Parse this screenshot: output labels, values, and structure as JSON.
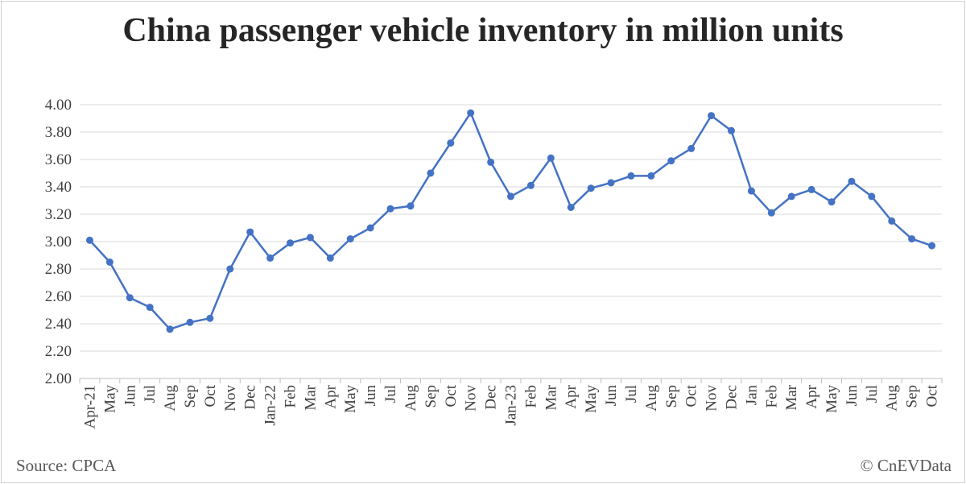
{
  "chart_data": {
    "type": "line",
    "title": "China passenger vehicle inventory in million units",
    "xlabel": "",
    "ylabel": "",
    "ylim": [
      2.0,
      4.0
    ],
    "yticks": [
      "2.00",
      "2.20",
      "2.40",
      "2.60",
      "2.80",
      "3.00",
      "3.20",
      "3.40",
      "3.60",
      "3.80",
      "4.00"
    ],
    "grid": true,
    "legend": "none",
    "color": "#4472C4",
    "categories": [
      "Apr-21",
      "May",
      "Jun",
      "Jul",
      "Aug",
      "Sep",
      "Oct",
      "Nov",
      "Dec",
      "Jan-22",
      "Feb",
      "Mar",
      "Apr",
      "May",
      "Jun",
      "Jul",
      "Aug",
      "Sep",
      "Oct",
      "Nov",
      "Dec",
      "Jan-23",
      "Feb",
      "Mar",
      "Apr",
      "May",
      "Jun",
      "Jul",
      "Aug",
      "Sep",
      "Oct",
      "Nov",
      "Dec",
      "Jan",
      "Feb",
      "Mar",
      "Apr",
      "May",
      "Jun",
      "Jul",
      "Aug",
      "Sep",
      "Oct"
    ],
    "values": [
      3.01,
      2.85,
      2.59,
      2.52,
      2.36,
      2.41,
      2.44,
      2.8,
      3.07,
      2.88,
      2.99,
      3.03,
      2.88,
      3.02,
      3.1,
      3.24,
      3.26,
      3.5,
      3.72,
      3.94,
      3.58,
      3.33,
      3.41,
      3.61,
      3.25,
      3.39,
      3.43,
      3.48,
      3.48,
      3.59,
      3.68,
      3.92,
      3.81,
      3.37,
      3.21,
      3.33,
      3.38,
      3.29,
      3.44,
      3.33,
      3.15,
      3.02,
      2.97
    ]
  },
  "footer": {
    "source": "Source: CPCA",
    "copyright": "© CnEVData"
  }
}
